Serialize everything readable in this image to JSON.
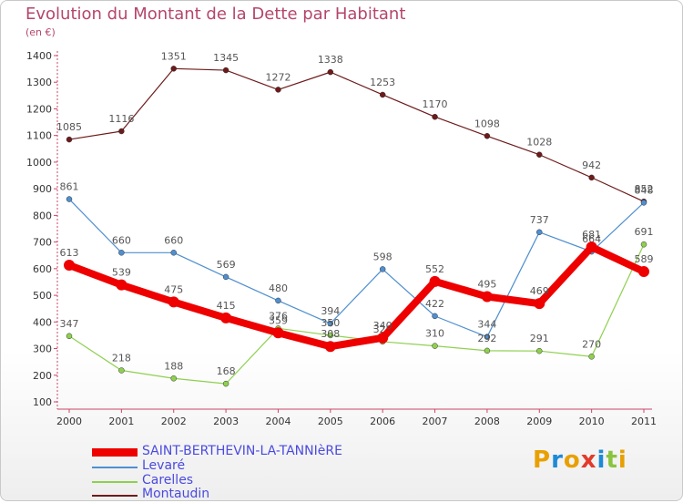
{
  "header": {
    "title": "Evolution du Montant de la Dette par Habitant",
    "subtitle": "(en €)"
  },
  "logo": {
    "text": "Proxiti",
    "colors": [
      "#e8a000",
      "#1e8ad6",
      "#e8a000",
      "#e23b2b",
      "#1e8ad6",
      "#8ac43f",
      "#e8a000"
    ]
  },
  "chart_data": {
    "type": "line",
    "x": [
      "2000",
      "2001",
      "2002",
      "2003",
      "2004",
      "2005",
      "2006",
      "2007",
      "2008",
      "2009",
      "2010",
      "2011"
    ],
    "ylim": [
      100,
      1400
    ],
    "yticks": [
      "100",
      "200",
      "300",
      "400",
      "500",
      "600",
      "700",
      "800",
      "900",
      "1000",
      "1100",
      "1200",
      "1300",
      "1400"
    ],
    "grid": false,
    "legend_position": "bottom-left",
    "series": [
      {
        "name": "Montaudin",
        "color": "#6e1a1a",
        "values": [
          1085,
          1116,
          1351,
          1345,
          1272,
          1338,
          1253,
          1170,
          1098,
          1028,
          942,
          852
        ]
      },
      {
        "name": "Levaré",
        "color": "#4f8fd0",
        "values": [
          861,
          660,
          660,
          569,
          480,
          394,
          598,
          422,
          344,
          737,
          664,
          848
        ]
      },
      {
        "name": "Carelles",
        "color": "#8fd04f",
        "values": [
          347,
          218,
          188,
          168,
          376,
          350,
          326,
          310,
          292,
          291,
          270,
          691
        ]
      },
      {
        "name": "SAINT-BERTHEVIN-LA-TANNIèRE",
        "color": "#ee0000",
        "values": [
          613,
          539,
          475,
          415,
          359,
          308,
          340,
          552,
          495,
          469,
          681,
          589
        ]
      }
    ],
    "legend": [
      "SAINT-BERTHEVIN-LA-TANNIèRE",
      "Levaré",
      "Carelles",
      "Montaudin"
    ]
  }
}
